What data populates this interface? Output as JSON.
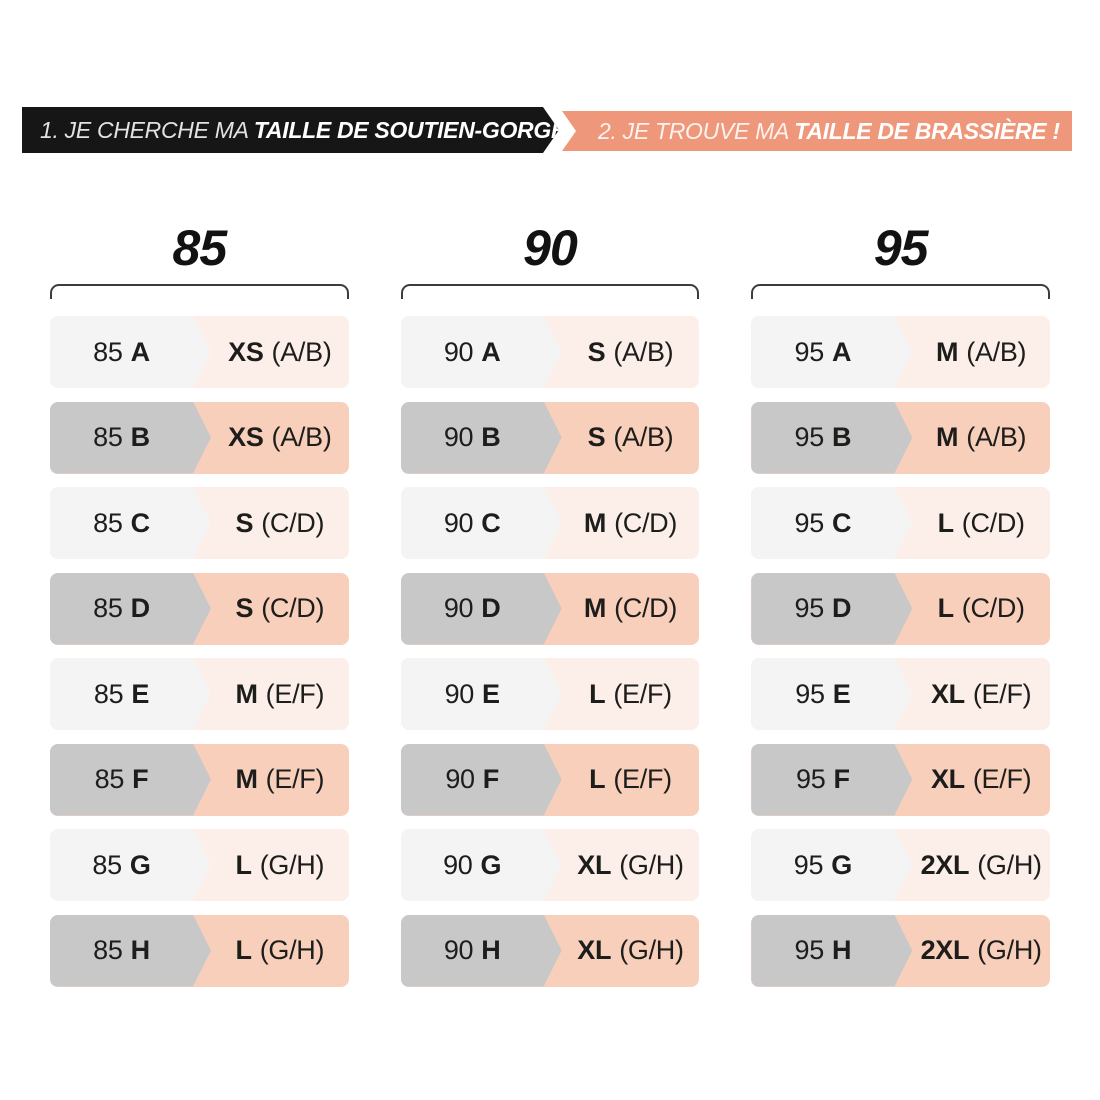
{
  "banner": {
    "step1_prefix": "1. JE CHERCHE MA ",
    "step1_bold": "TAILLE DE SOUTIEN-GORGE...",
    "step2_prefix": "2. JE TROUVE MA ",
    "step2_bold": "TAILLE DE BRASSIÈRE !"
  },
  "chart_data": {
    "type": "table",
    "band_sizes": [
      "85",
      "90",
      "95"
    ],
    "groups": [
      {
        "header": "85",
        "rows": [
          {
            "band": "85",
            "cup": "A",
            "size": "XS",
            "range": "(A/B)"
          },
          {
            "band": "85",
            "cup": "B",
            "size": "XS",
            "range": "(A/B)"
          },
          {
            "band": "85",
            "cup": "C",
            "size": "S",
            "range": "(C/D)"
          },
          {
            "band": "85",
            "cup": "D",
            "size": "S",
            "range": "(C/D)"
          },
          {
            "band": "85",
            "cup": "E",
            "size": "M",
            "range": "(E/F)"
          },
          {
            "band": "85",
            "cup": "F",
            "size": "M",
            "range": "(E/F)"
          },
          {
            "band": "85",
            "cup": "G",
            "size": "L",
            "range": "(G/H)"
          },
          {
            "band": "85",
            "cup": "H",
            "size": "L",
            "range": "(G/H)"
          }
        ]
      },
      {
        "header": "90",
        "rows": [
          {
            "band": "90",
            "cup": "A",
            "size": "S",
            "range": "(A/B)"
          },
          {
            "band": "90",
            "cup": "B",
            "size": "S",
            "range": "(A/B)"
          },
          {
            "band": "90",
            "cup": "C",
            "size": "M",
            "range": "(C/D)"
          },
          {
            "band": "90",
            "cup": "D",
            "size": "M",
            "range": "(C/D)"
          },
          {
            "band": "90",
            "cup": "E",
            "size": "L",
            "range": "(E/F)"
          },
          {
            "band": "90",
            "cup": "F",
            "size": "L",
            "range": "(E/F)"
          },
          {
            "band": "90",
            "cup": "G",
            "size": "XL",
            "range": "(G/H)"
          },
          {
            "band": "90",
            "cup": "H",
            "size": "XL",
            "range": "(G/H)"
          }
        ]
      },
      {
        "header": "95",
        "rows": [
          {
            "band": "95",
            "cup": "A",
            "size": "M",
            "range": "(A/B)"
          },
          {
            "band": "95",
            "cup": "B",
            "size": "M",
            "range": "(A/B)"
          },
          {
            "band": "95",
            "cup": "C",
            "size": "L",
            "range": "(C/D)"
          },
          {
            "band": "95",
            "cup": "D",
            "size": "L",
            "range": "(C/D)"
          },
          {
            "band": "95",
            "cup": "E",
            "size": "XL",
            "range": "(E/F)"
          },
          {
            "band": "95",
            "cup": "F",
            "size": "XL",
            "range": "(E/F)"
          },
          {
            "band": "95",
            "cup": "G",
            "size": "2XL",
            "range": "(G/H)"
          },
          {
            "band": "95",
            "cup": "H",
            "size": "2XL",
            "range": "(G/H)"
          }
        ]
      }
    ]
  },
  "colors": {
    "banner_black": "#161616",
    "banner_salmon": "#EF977A",
    "row_pink_light": "#FCEFE9",
    "row_salmon": "#F8CFBB",
    "cell_gray_light": "#F4F4F5",
    "cell_gray_mid": "#C9C8C9",
    "bracket": "#3C3C3B",
    "text": "#1D1D1B"
  }
}
